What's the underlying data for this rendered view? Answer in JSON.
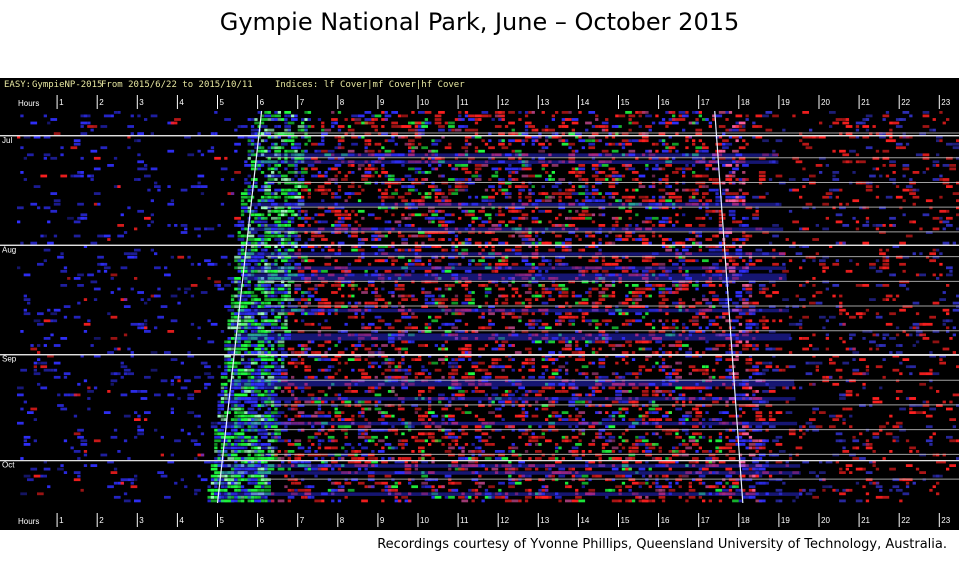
{
  "title": "Gympie National Park,  June – October 2015",
  "credit": "Recordings courtesy of Yvonne Phillips,  Queensland University of Technology, Australia.",
  "header": {
    "prefix": "EASY:",
    "site": "GympieNP-2015",
    "range": "From 2015/6/22 to 2015/10/11",
    "indices": "Indices: lf Cover|mf Cover|hf Cover"
  },
  "chart_data": {
    "type": "heatmap",
    "title": "Gympie National Park,  June – October 2015",
    "xlabel": "Hours",
    "x_ticks": [
      "1",
      "2",
      "3",
      "4",
      "5",
      "6",
      "7",
      "8",
      "9",
      "10",
      "11",
      "12",
      "13",
      "14",
      "15",
      "16",
      "17",
      "18",
      "19",
      "20",
      "21",
      "22",
      "23"
    ],
    "xlim": [
      0,
      24
    ],
    "y_date_range": [
      "2015-06-22",
      "2015-10-11"
    ],
    "month_labels": [
      {
        "label": "Jul",
        "date": "2015-07-01"
      },
      {
        "label": "Aug",
        "date": "2015-08-01"
      },
      {
        "label": "Sep",
        "date": "2015-09-01"
      },
      {
        "label": "Oct",
        "date": "2015-10-01"
      }
    ],
    "color_channels": {
      "red": "lf Cover",
      "green": "mf Cover",
      "blue": "hf Cover"
    },
    "sunrise_hour": {
      "start": 6.1,
      "end": 5.0
    },
    "sunset_hour": {
      "start": 17.4,
      "end": 18.1
    },
    "grid": true,
    "palette": {
      "background": "#000000",
      "lf": "#ff2020",
      "mf": "#20ff40",
      "hf": "#3030ff",
      "gridline": "#c8c8c8",
      "axis_text": "#ffffff"
    }
  }
}
